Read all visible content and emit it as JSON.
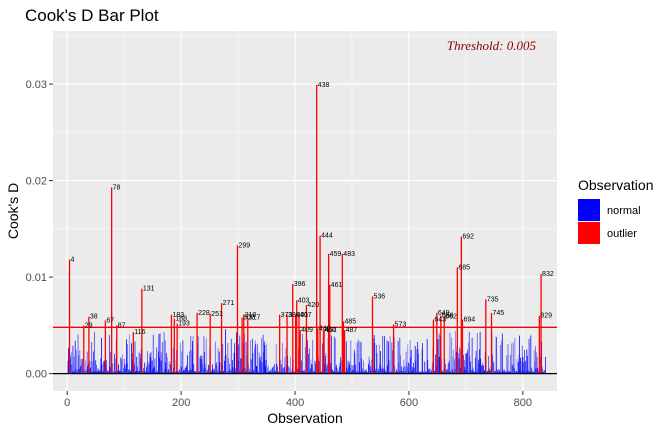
{
  "chart_data": {
    "type": "bar",
    "title": "Cook's D Bar Plot",
    "xlabel": "Observation",
    "ylabel": "Cook's D",
    "xlim": [
      -25,
      860
    ],
    "ylim": [
      -0.0018,
      0.0355
    ],
    "x_ticks": [
      0,
      200,
      400,
      600,
      800
    ],
    "x_tick_labels": [
      "0",
      "200",
      "400",
      "600",
      "800"
    ],
    "y_ticks": [
      0.0,
      0.01,
      0.02,
      0.03
    ],
    "y_tick_labels": [
      "0.00",
      "0.01",
      "0.02",
      "0.03"
    ],
    "threshold": 0.0048,
    "annotation": "Threshold: 0.005",
    "grid": true,
    "legend": {
      "title": "Observation",
      "placement": "right",
      "entries": [
        {
          "label": "normal",
          "color": "#0000FF"
        },
        {
          "label": "outlier",
          "color": "#FF0000"
        }
      ]
    },
    "colors": {
      "normal": "#0000FF",
      "outlier": "#FF0000",
      "threshold": "#FF0000",
      "annotation": "#8B0000"
    },
    "n_observations": 840,
    "outliers": [
      {
        "x": 4,
        "value": 0.0118,
        "label": "4"
      },
      {
        "x": 29,
        "value": 0.005,
        "label": "29"
      },
      {
        "x": 38,
        "value": 0.0059,
        "label": "38"
      },
      {
        "x": 67,
        "value": 0.0055,
        "label": "67"
      },
      {
        "x": 78,
        "value": 0.0193,
        "label": "78"
      },
      {
        "x": 87,
        "value": 0.005,
        "label": "87"
      },
      {
        "x": 116,
        "value": 0.0043,
        "label": "116"
      },
      {
        "x": 131,
        "value": 0.0088,
        "label": "131"
      },
      {
        "x": 183,
        "value": 0.0061,
        "label": "183"
      },
      {
        "x": 188,
        "value": 0.0057,
        "label": "188"
      },
      {
        "x": 193,
        "value": 0.0052,
        "label": "193"
      },
      {
        "x": 228,
        "value": 0.0063,
        "label": "228"
      },
      {
        "x": 251,
        "value": 0.0062,
        "label": "251"
      },
      {
        "x": 271,
        "value": 0.0073,
        "label": "271"
      },
      {
        "x": 299,
        "value": 0.0133,
        "label": "299"
      },
      {
        "x": 307,
        "value": 0.0058,
        "label": "307"
      },
      {
        "x": 310,
        "value": 0.0061,
        "label": "310"
      },
      {
        "x": 317,
        "value": 0.0058,
        "label": "317"
      },
      {
        "x": 373,
        "value": 0.0061,
        "label": "373"
      },
      {
        "x": 386,
        "value": 0.0061,
        "label": "386"
      },
      {
        "x": 396,
        "value": 0.0093,
        "label": "396"
      },
      {
        "x": 401,
        "value": 0.0061,
        "label": "401"
      },
      {
        "x": 403,
        "value": 0.0076,
        "label": "403"
      },
      {
        "x": 407,
        "value": 0.0061,
        "label": "407"
      },
      {
        "x": 409,
        "value": 0.0045,
        "label": "409"
      },
      {
        "x": 420,
        "value": 0.0071,
        "label": "420"
      },
      {
        "x": 438,
        "value": 0.0299,
        "label": "438"
      },
      {
        "x": 440,
        "value": 0.0047,
        "label": "440"
      },
      {
        "x": 444,
        "value": 0.0143,
        "label": "444"
      },
      {
        "x": 450,
        "value": 0.0045,
        "label": "450"
      },
      {
        "x": 451,
        "value": 0.0045,
        "label": "451"
      },
      {
        "x": 459,
        "value": 0.0124,
        "label": "459"
      },
      {
        "x": 461,
        "value": 0.0092,
        "label": "461"
      },
      {
        "x": 483,
        "value": 0.0124,
        "label": "483"
      },
      {
        "x": 485,
        "value": 0.0054,
        "label": "485"
      },
      {
        "x": 487,
        "value": 0.0045,
        "label": "487"
      },
      {
        "x": 536,
        "value": 0.008,
        "label": "536"
      },
      {
        "x": 573,
        "value": 0.0051,
        "label": "573"
      },
      {
        "x": 643,
        "value": 0.0056,
        "label": "643"
      },
      {
        "x": 649,
        "value": 0.0063,
        "label": "649"
      },
      {
        "x": 656,
        "value": 0.006,
        "label": "656"
      },
      {
        "x": 662,
        "value": 0.0059,
        "label": "662"
      },
      {
        "x": 685,
        "value": 0.011,
        "label": "685"
      },
      {
        "x": 692,
        "value": 0.0142,
        "label": "692"
      },
      {
        "x": 694,
        "value": 0.0056,
        "label": "694"
      },
      {
        "x": 735,
        "value": 0.0077,
        "label": "735"
      },
      {
        "x": 745,
        "value": 0.0063,
        "label": "745"
      },
      {
        "x": 829,
        "value": 0.006,
        "label": "829"
      },
      {
        "x": 832,
        "value": 0.0103,
        "label": "832"
      }
    ]
  }
}
